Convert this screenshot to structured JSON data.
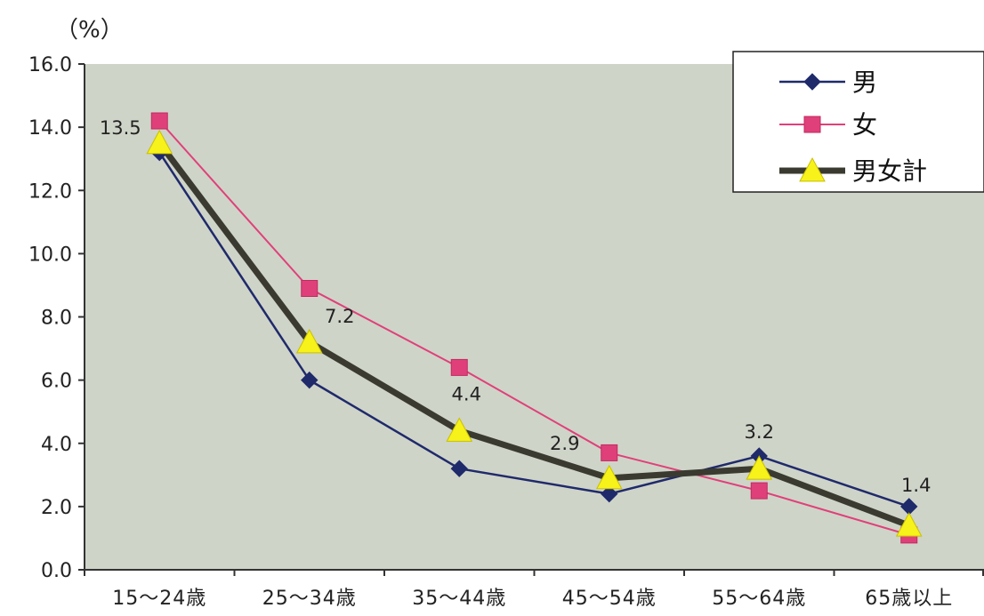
{
  "chart_data": {
    "type": "line",
    "unit_label": "（%）",
    "categories": [
      "15～24歳",
      "25～34歳",
      "35～44歳",
      "45～54歳",
      "55～64歳",
      "65歳以上"
    ],
    "ylim": [
      0,
      16
    ],
    "yticks": [
      "0.0",
      "2.0",
      "4.0",
      "6.0",
      "8.0",
      "10.0",
      "12.0",
      "14.0",
      "16.0"
    ],
    "grid": false,
    "legend_position": "top-right",
    "series": [
      {
        "name": "男",
        "values": [
          13.2,
          6.0,
          3.2,
          2.4,
          3.6,
          2.0
        ],
        "color": "#1f2a6b",
        "marker": "diamond"
      },
      {
        "name": "女",
        "values": [
          14.2,
          8.9,
          6.4,
          3.7,
          2.5,
          1.1
        ],
        "color": "#e0407a",
        "marker": "square"
      },
      {
        "name": "男女計",
        "values": [
          13.5,
          7.2,
          4.4,
          2.9,
          3.2,
          1.4
        ],
        "color": "#3a3a30",
        "marker": "triangle",
        "marker_color": "#f7f21a"
      }
    ],
    "data_labels": [
      "13.5",
      "7.2",
      "4.4",
      "2.9",
      "3.2",
      "1.4"
    ],
    "plot_background": "#cfd4c8"
  }
}
